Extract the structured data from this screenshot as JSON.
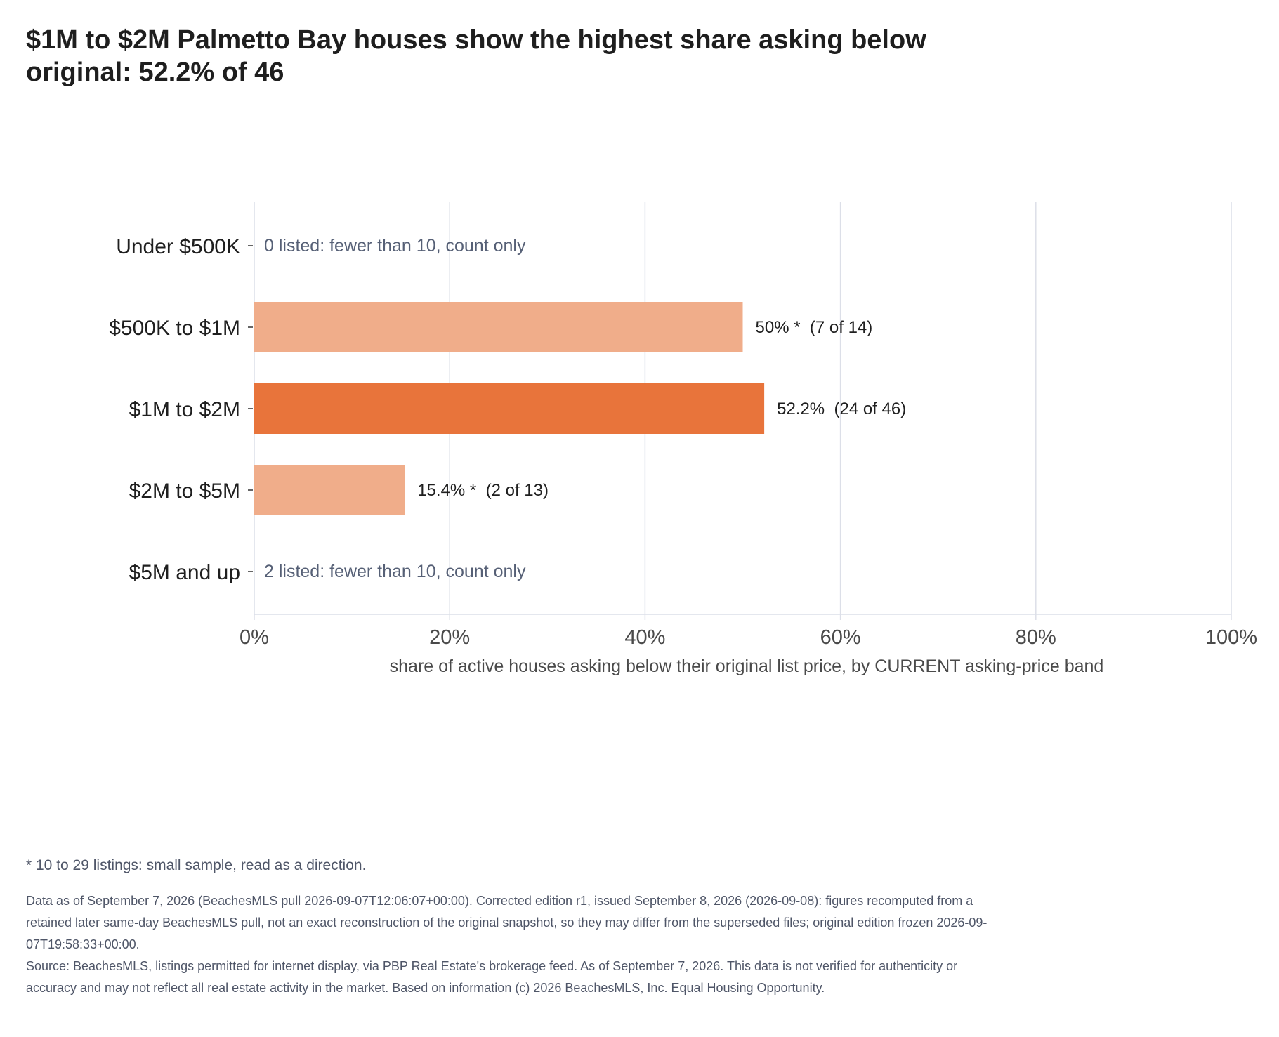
{
  "title": "$1M to $2M Palmetto Bay houses show the highest share asking below original: 52.2% of 46",
  "chart_data": {
    "type": "bar",
    "orientation": "horizontal",
    "categories": [
      "Under $500K",
      "$500K to $1M",
      "$1M to $2M",
      "$2M to $5M",
      "$5M and up"
    ],
    "values": [
      null,
      50,
      52.2,
      15.4,
      null
    ],
    "bar_labels": [
      "0 listed: fewer than 10, count only",
      "50% *  (7 of 14)",
      "52.2%  (24 of 46)",
      "15.4% *  (2 of 13)",
      "2 listed: fewer than 10, count only"
    ],
    "highlight_index": 2,
    "xlim": [
      0,
      100
    ],
    "x_ticks": [
      0,
      20,
      40,
      60,
      80,
      100
    ],
    "x_tick_labels": [
      "0%",
      "20%",
      "40%",
      "60%",
      "80%",
      "100%"
    ],
    "xlabel": "share of active houses asking below their original list price, by CURRENT asking-price band",
    "grid": "vertical",
    "colors": {
      "bar": "#f0ad8a",
      "highlight": "#e8743b",
      "grid": "#dcdfe8",
      "note_text": "#566076",
      "label_text": "#1f1f1f",
      "tick_text": "#4a4a4a"
    }
  },
  "footnote": "* 10 to 29 listings: small sample, read as a direction.",
  "fineprint": {
    "data_note": "Data as of September 7, 2026 (BeachesMLS pull 2026-09-07T12:06:07+00:00). Corrected edition r1, issued September 8, 2026 (2026-09-08): figures recomputed from a retained later same-day BeachesMLS pull, not an exact reconstruction of the original snapshot, so they may differ from the superseded files; original edition frozen 2026-09-07T19:58:33+00:00.",
    "source": "Source: BeachesMLS, listings permitted for internet display, via PBP Real Estate's brokerage feed. As of September 7, 2026. This data is not verified for authenticity or accuracy and may not reflect all real estate activity in the market. Based on information (c) 2026 BeachesMLS, Inc. Equal Housing Opportunity."
  }
}
